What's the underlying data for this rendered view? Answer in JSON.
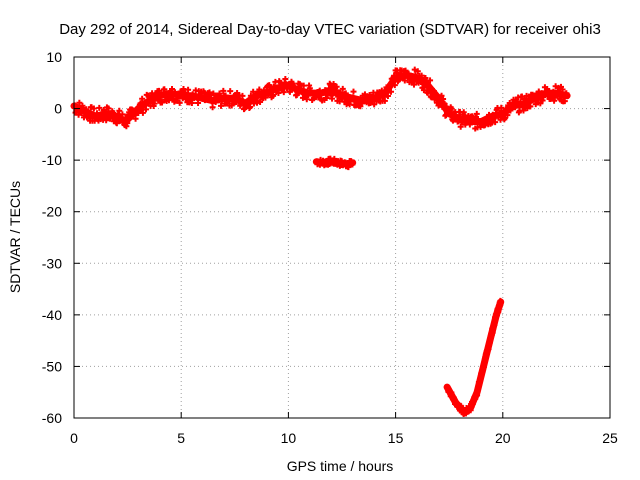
{
  "chart_data": {
    "type": "line",
    "title": "Day 292 of 2014, Sidereal Day-to-day VTEC variation (SDTVAR) for receiver ohi3",
    "xlabel": "GPS time / hours",
    "ylabel": "SDTVAR / TECUs",
    "xlim": [
      0,
      25
    ],
    "ylim": [
      -60,
      10
    ],
    "x_ticks": [
      0,
      5,
      10,
      15,
      20,
      25
    ],
    "y_ticks": [
      10,
      0,
      -10,
      -20,
      -30,
      -40,
      -50,
      -60
    ],
    "grid": true,
    "legend": "none",
    "series_color": "#ff0000",
    "series": [
      {
        "name": "main",
        "x": [
          0,
          0.5,
          1.0,
          1.5,
          2.0,
          2.4,
          3.0,
          3.5,
          4.0,
          4.5,
          5.0,
          5.5,
          6.0,
          6.5,
          7.0,
          7.5,
          8.0,
          8.5,
          9.0,
          9.5,
          10.0,
          10.5,
          11.0,
          11.5,
          12.0,
          12.5,
          13.0,
          13.5,
          14.0,
          14.5,
          15.0,
          15.5,
          16.0,
          16.5,
          17.0,
          17.5,
          18.0,
          18.5,
          19.0,
          19.5,
          20.0,
          20.5,
          21.0,
          21.5,
          22.0,
          22.5,
          23.0
        ],
        "y": [
          0.5,
          -0.5,
          -1.5,
          -1.0,
          -1.5,
          -2.5,
          0.0,
          1.5,
          2.5,
          3.0,
          2.5,
          2.5,
          2.0,
          1.5,
          2.0,
          2.0,
          1.0,
          2.5,
          3.0,
          4.0,
          4.5,
          3.5,
          3.0,
          3.0,
          3.5,
          2.5,
          2.0,
          1.5,
          2.0,
          3.0,
          6.0,
          6.5,
          6.0,
          4.5,
          2.0,
          -1.0,
          -2.0,
          -2.5,
          -2.5,
          -1.5,
          -1.0,
          0.5,
          1.0,
          2.0,
          3.0,
          3.0,
          2.5
        ],
        "band": 1.5
      },
      {
        "name": "segment-2",
        "x": [
          11.3,
          11.7,
          12.0,
          12.4,
          12.8,
          13.0
        ],
        "y": [
          -10.3,
          -10.5,
          -10.2,
          -10.6,
          -10.8,
          -10.5
        ],
        "band": 0.6
      },
      {
        "name": "segment-3",
        "x": [
          17.4,
          17.8,
          18.2,
          18.5,
          18.8,
          19.1,
          19.4,
          19.7,
          19.9
        ],
        "y": [
          -54,
          -57,
          -59,
          -58,
          -55,
          -50,
          -45,
          -40,
          -37.5
        ],
        "band": 0.6
      }
    ]
  }
}
